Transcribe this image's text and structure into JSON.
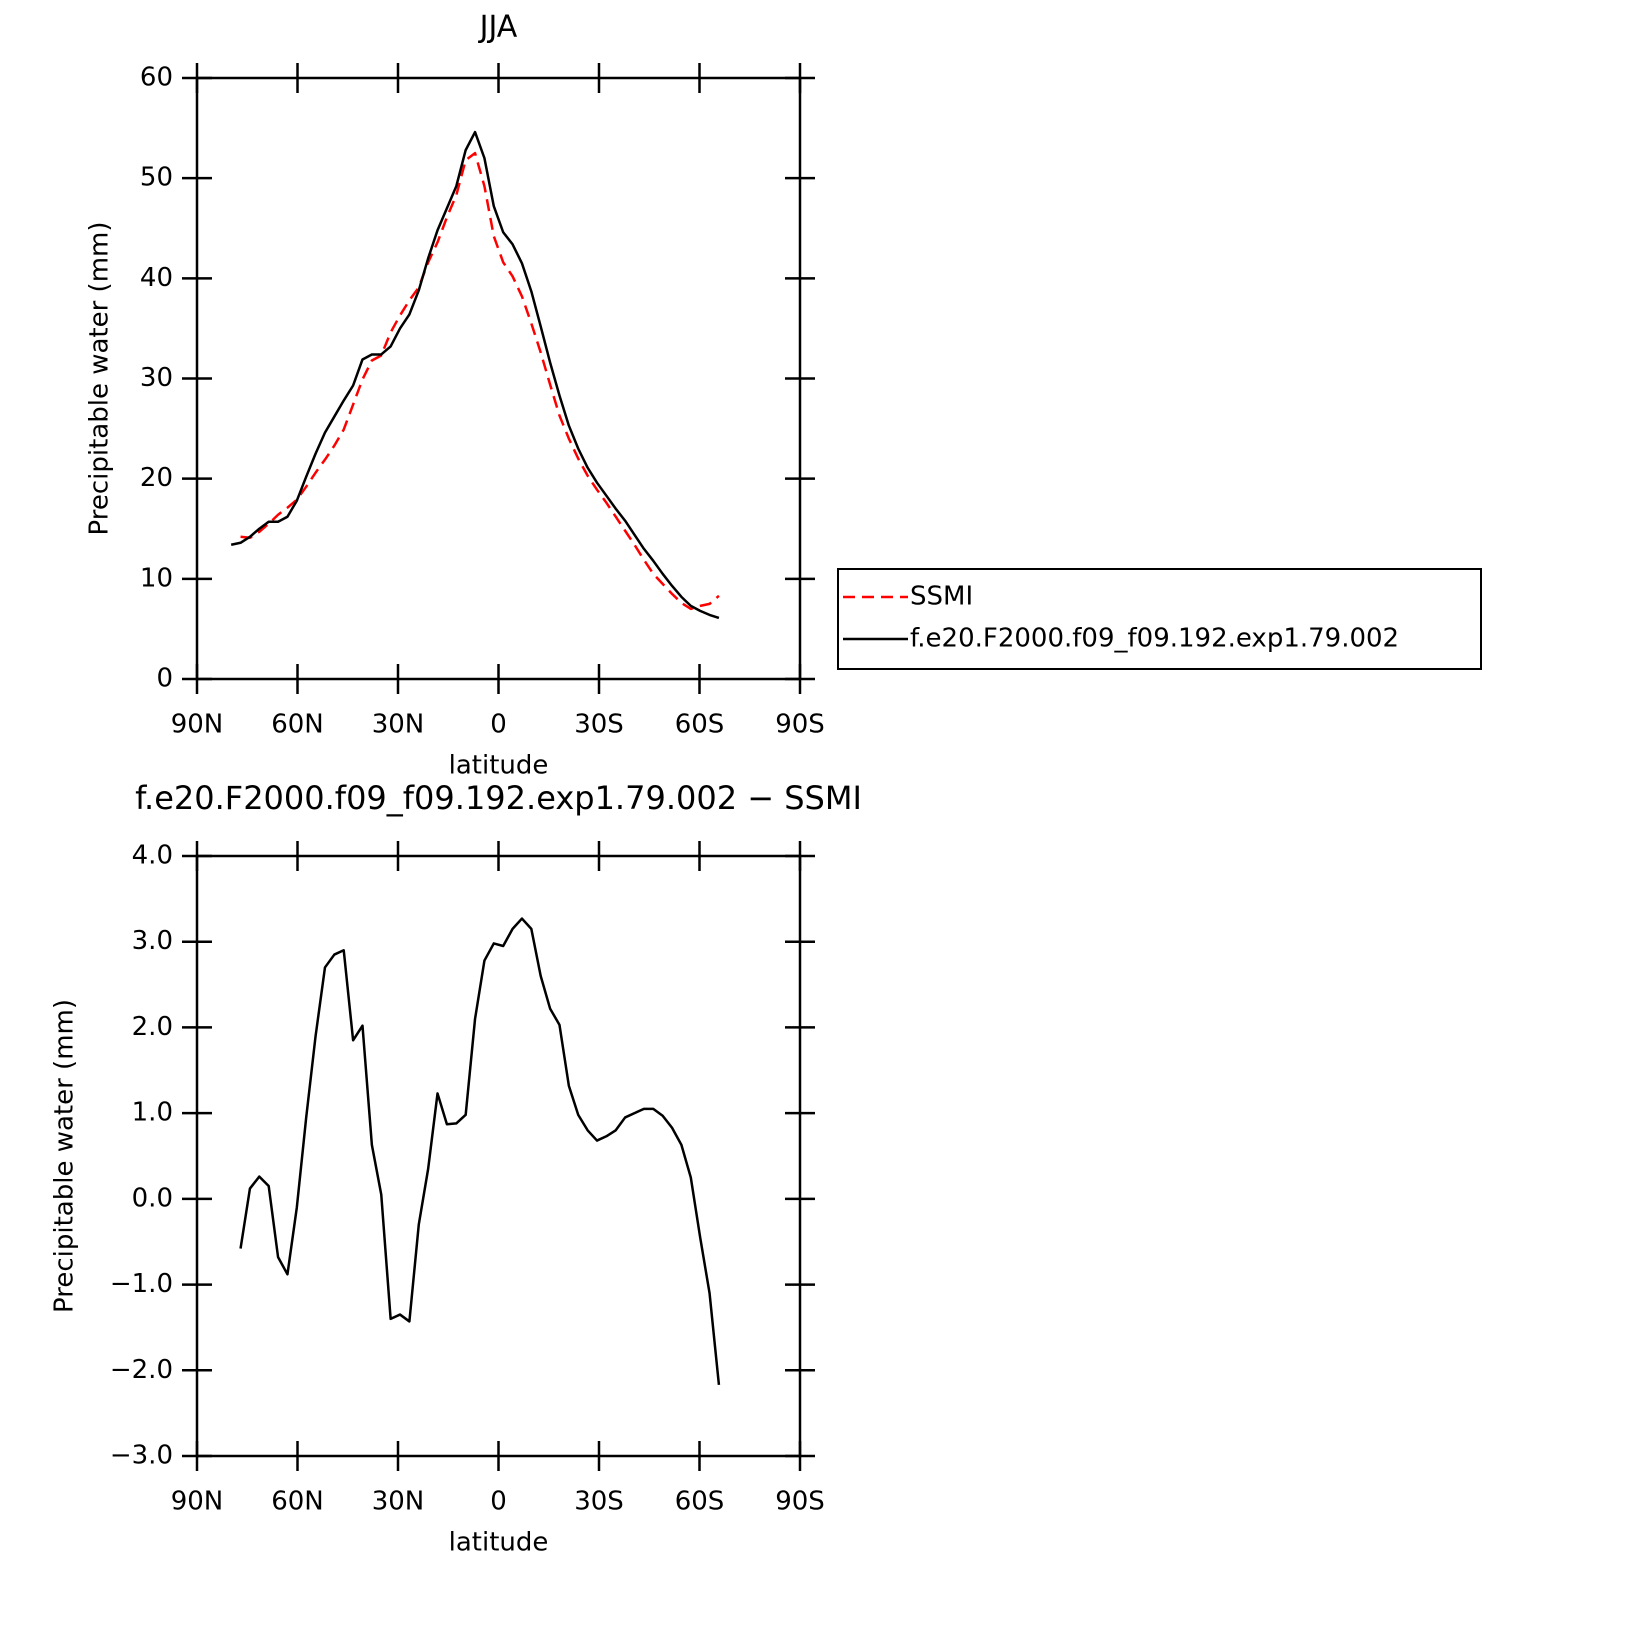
{
  "chart_data": [
    {
      "type": "line",
      "title": "JJA",
      "x_label": "latitude",
      "y_label": "Precipitable water (mm)",
      "x": [
        79.8,
        77,
        74.2,
        71.4,
        68.6,
        65.8,
        63,
        60.2,
        57.4,
        54.6,
        51.8,
        49,
        46.2,
        43.4,
        40.6,
        37.8,
        35,
        32.2,
        29.4,
        26.6,
        23.8,
        21,
        18.2,
        15.4,
        12.6,
        9.8,
        7,
        4.2,
        1.4,
        -1.4,
        -4.2,
        -7,
        -9.8,
        -12.6,
        -15.4,
        -18.2,
        -21,
        -23.8,
        -26.6,
        -29.4,
        -32.2,
        -35,
        -37.8,
        -40.6,
        -43.4,
        -46.2,
        -49,
        -51.8,
        -54.6,
        -57.4,
        -60.2,
        -63,
        -65.8
      ],
      "series": [
        {
          "name": "SSMI",
          "color": "#ff0000",
          "dashed": true,
          "values": [
            null,
            14.2,
            14.1,
            14.7,
            15.5,
            16.4,
            17.1,
            17.9,
            19.2,
            20.6,
            21.9,
            23.3,
            24.9,
            27.4,
            29.9,
            31.8,
            32.3,
            34.6,
            36.3,
            37.8,
            39.1,
            41.6,
            43.6,
            46.1,
            48.3,
            51.8,
            52.5,
            49.2,
            44.2,
            41.6,
            40.2,
            38.2,
            35.5,
            32.6,
            29.4,
            26.3,
            24.0,
            22.0,
            20.3,
            18.9,
            17.6,
            16.2,
            14.8,
            13.4,
            11.9,
            10.5,
            9.5,
            8.5,
            7.6,
            7.0,
            7.3,
            7.5,
            8.3
          ]
        },
        {
          "name": "f.e20.F2000.f09_f09.192.exp1.79.002",
          "color": "#000000",
          "dashed": false,
          "values": [
            13.4,
            13.6,
            14.2,
            15.0,
            15.7,
            15.7,
            16.2,
            17.8,
            20.2,
            22.5,
            24.6,
            26.2,
            27.8,
            29.3,
            31.9,
            32.4,
            32.4,
            33.2,
            35.0,
            36.4,
            38.8,
            42.0,
            44.8,
            47.0,
            49.2,
            52.8,
            54.6,
            52.0,
            47.2,
            44.6,
            43.4,
            41.5,
            38.7,
            35.2,
            31.6,
            28.3,
            25.3,
            23.0,
            21.1,
            19.6,
            18.3,
            17.0,
            15.8,
            14.4,
            13.0,
            11.8,
            10.5,
            9.3,
            8.2,
            7.3,
            6.8,
            6.4,
            6.1
          ]
        }
      ],
      "xlim": [
        90,
        -90
      ],
      "ylim": [
        0,
        60
      ],
      "xticks": [
        {
          "value": 90,
          "label": "90N"
        },
        {
          "value": 60,
          "label": "60N"
        },
        {
          "value": 30,
          "label": "30N"
        },
        0,
        {
          "value": -30,
          "label": "30S"
        },
        {
          "value": -60,
          "label": "60S"
        },
        {
          "value": -90,
          "label": "90S"
        }
      ],
      "yticks": [
        0,
        10,
        20,
        30,
        40,
        50,
        60
      ],
      "legend": "right"
    },
    {
      "type": "line",
      "title": "f.e20.F2000.f09_f09.192.exp1.79.002 − SSMI",
      "x_label": "latitude",
      "y_label": "Precipitable water (mm)",
      "x": [
        77,
        74.2,
        71.4,
        68.6,
        65.8,
        63,
        60.2,
        57.4,
        54.6,
        51.8,
        49,
        46.2,
        43.4,
        40.6,
        37.8,
        35,
        32.2,
        29.4,
        26.6,
        23.8,
        21,
        18.2,
        15.4,
        12.6,
        9.8,
        7,
        4.2,
        1.4,
        -1.4,
        -4.2,
        -7,
        -9.8,
        -12.6,
        -15.4,
        -18.2,
        -21,
        -23.8,
        -26.6,
        -29.4,
        -32.2,
        -35,
        -37.8,
        -40.6,
        -43.4,
        -46.2,
        -49,
        -51.8,
        -54.6,
        -57.4,
        -60.2,
        -63,
        -65.8
      ],
      "series": [
        {
          "color": "#000000",
          "dashed": false,
          "values": [
            -0.58,
            0.12,
            0.26,
            0.15,
            -0.68,
            -0.88,
            -0.1,
            0.95,
            1.9,
            2.7,
            2.85,
            2.9,
            1.85,
            2.02,
            0.63,
            0.05,
            -1.4,
            -1.35,
            -1.43,
            -0.3,
            0.35,
            1.23,
            0.87,
            0.88,
            0.98,
            2.1,
            2.78,
            2.98,
            2.95,
            3.15,
            3.27,
            3.15,
            2.6,
            2.22,
            2.03,
            1.32,
            0.98,
            0.8,
            0.68,
            0.73,
            0.8,
            0.95,
            1.0,
            1.05,
            1.05,
            0.97,
            0.83,
            0.63,
            0.25,
            -0.45,
            -1.1,
            -2.17
          ]
        }
      ],
      "xlim": [
        90,
        -90
      ],
      "ylim": [
        -3,
        4
      ],
      "xticks": [
        {
          "value": 90,
          "label": "90N"
        },
        {
          "value": 60,
          "label": "60N"
        },
        {
          "value": 30,
          "label": "30N"
        },
        0,
        {
          "value": -30,
          "label": "30S"
        },
        {
          "value": -60,
          "label": "60S"
        },
        {
          "value": -90,
          "label": "90S"
        }
      ],
      "yticks": [
        {
          "value": -3,
          "label": "−3.0"
        },
        {
          "value": -2,
          "label": "−2.0"
        },
        {
          "value": -1,
          "label": "−1.0"
        },
        {
          "value": 0,
          "label": "0.0"
        },
        {
          "value": 1,
          "label": "1.0"
        },
        {
          "value": 2,
          "label": "2.0"
        },
        {
          "value": 3,
          "label": "3.0"
        },
        {
          "value": 4,
          "label": "4.0"
        }
      ]
    }
  ]
}
